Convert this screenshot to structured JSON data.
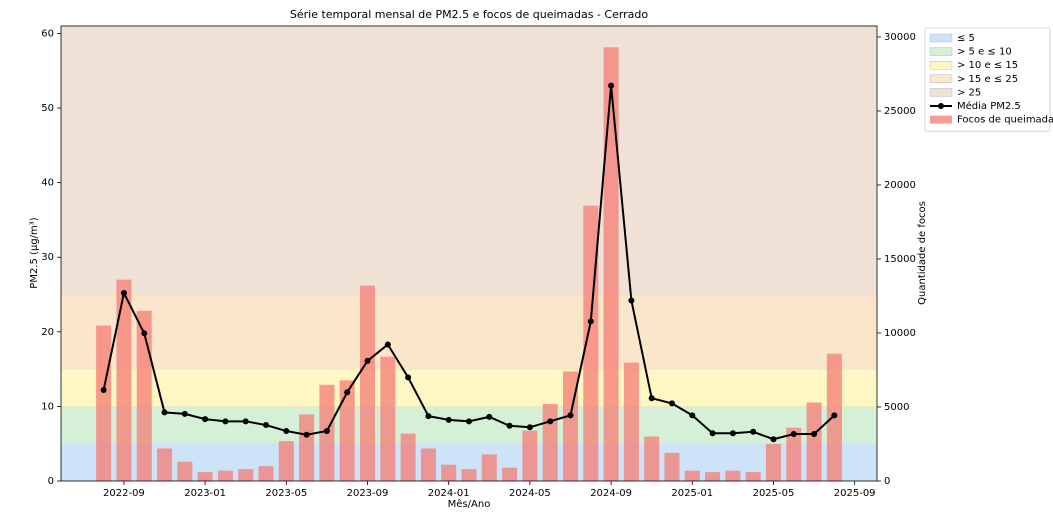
{
  "chart_data": {
    "type": "combo",
    "title": "Série temporal mensal de PM2.5 e focos de queimadas - Cerrado",
    "xlabel": "Mês/Ano",
    "ylabel": "PM2.5 (µg/m³)",
    "y2label": "Quantidade de focos",
    "x": [
      "2022-08",
      "2022-09",
      "2022-10",
      "2022-11",
      "2022-12",
      "2023-01",
      "2023-02",
      "2023-03",
      "2023-04",
      "2023-05",
      "2023-06",
      "2023-07",
      "2023-08",
      "2023-09",
      "2023-10",
      "2023-11",
      "2023-12",
      "2024-01",
      "2024-02",
      "2024-03",
      "2024-04",
      "2024-05",
      "2024-06",
      "2024-07",
      "2024-08",
      "2024-09",
      "2024-10",
      "2024-11",
      "2024-12",
      "2025-01",
      "2025-02",
      "2025-03",
      "2025-04",
      "2025-05",
      "2025-06",
      "2025-07",
      "2025-08"
    ],
    "series": [
      {
        "name": "Focos de queimadas",
        "type": "bar",
        "axis": "y2",
        "color": "#f47c74",
        "values": [
          10500,
          13600,
          11500,
          2200,
          1300,
          600,
          700,
          800,
          1000,
          2700,
          4500,
          6500,
          6800,
          13200,
          8400,
          3200,
          2200,
          1100,
          800,
          1800,
          900,
          3400,
          5200,
          7400,
          18600,
          29300,
          8000,
          3000,
          1900,
          700,
          600,
          700,
          600,
          2500,
          3600,
          5300,
          8600
        ]
      },
      {
        "name": "Média PM2.5",
        "type": "line",
        "color": "#000000",
        "values": [
          12.2,
          25.2,
          19.8,
          9.2,
          9.0,
          8.3,
          8.0,
          8.0,
          7.5,
          6.7,
          6.2,
          6.7,
          11.9,
          16.1,
          18.3,
          13.9,
          8.7,
          8.2,
          8.0,
          8.6,
          7.4,
          7.2,
          8.0,
          8.8,
          21.4,
          53.0,
          24.2,
          11.1,
          10.4,
          8.8,
          6.4,
          6.4,
          6.6,
          5.6,
          6.3,
          6.3,
          8.8
        ]
      }
    ],
    "bands": [
      {
        "label": "≤ 5",
        "from": 0,
        "to": 5,
        "color": "#cde3f8"
      },
      {
        "label": "> 5 e ≤ 10",
        "from": 5,
        "to": 10,
        "color": "#d6efd7"
      },
      {
        "label": "> 10 e ≤ 15",
        "from": 10,
        "to": 15,
        "color": "#fdf7c3"
      },
      {
        "label": "> 15 e ≤ 25",
        "from": 15,
        "to": 25,
        "color": "#f9e6cb"
      },
      {
        "label": "> 25",
        "from": 25,
        "color": "#efe1d6"
      }
    ],
    "ylim": [
      0,
      61
    ],
    "yticks": [
      0,
      10,
      20,
      30,
      40,
      50,
      60
    ],
    "y2lim": [
      0,
      30740
    ],
    "y2ticks": [
      0,
      5000,
      10000,
      15000,
      20000,
      25000,
      30000
    ],
    "xticks": [
      "2022-09",
      "2023-01",
      "2023-05",
      "2023-09",
      "2024-01",
      "2024-05",
      "2024-09",
      "2025-01",
      "2025-05",
      "2025-09"
    ],
    "legend": "outside upper right"
  }
}
